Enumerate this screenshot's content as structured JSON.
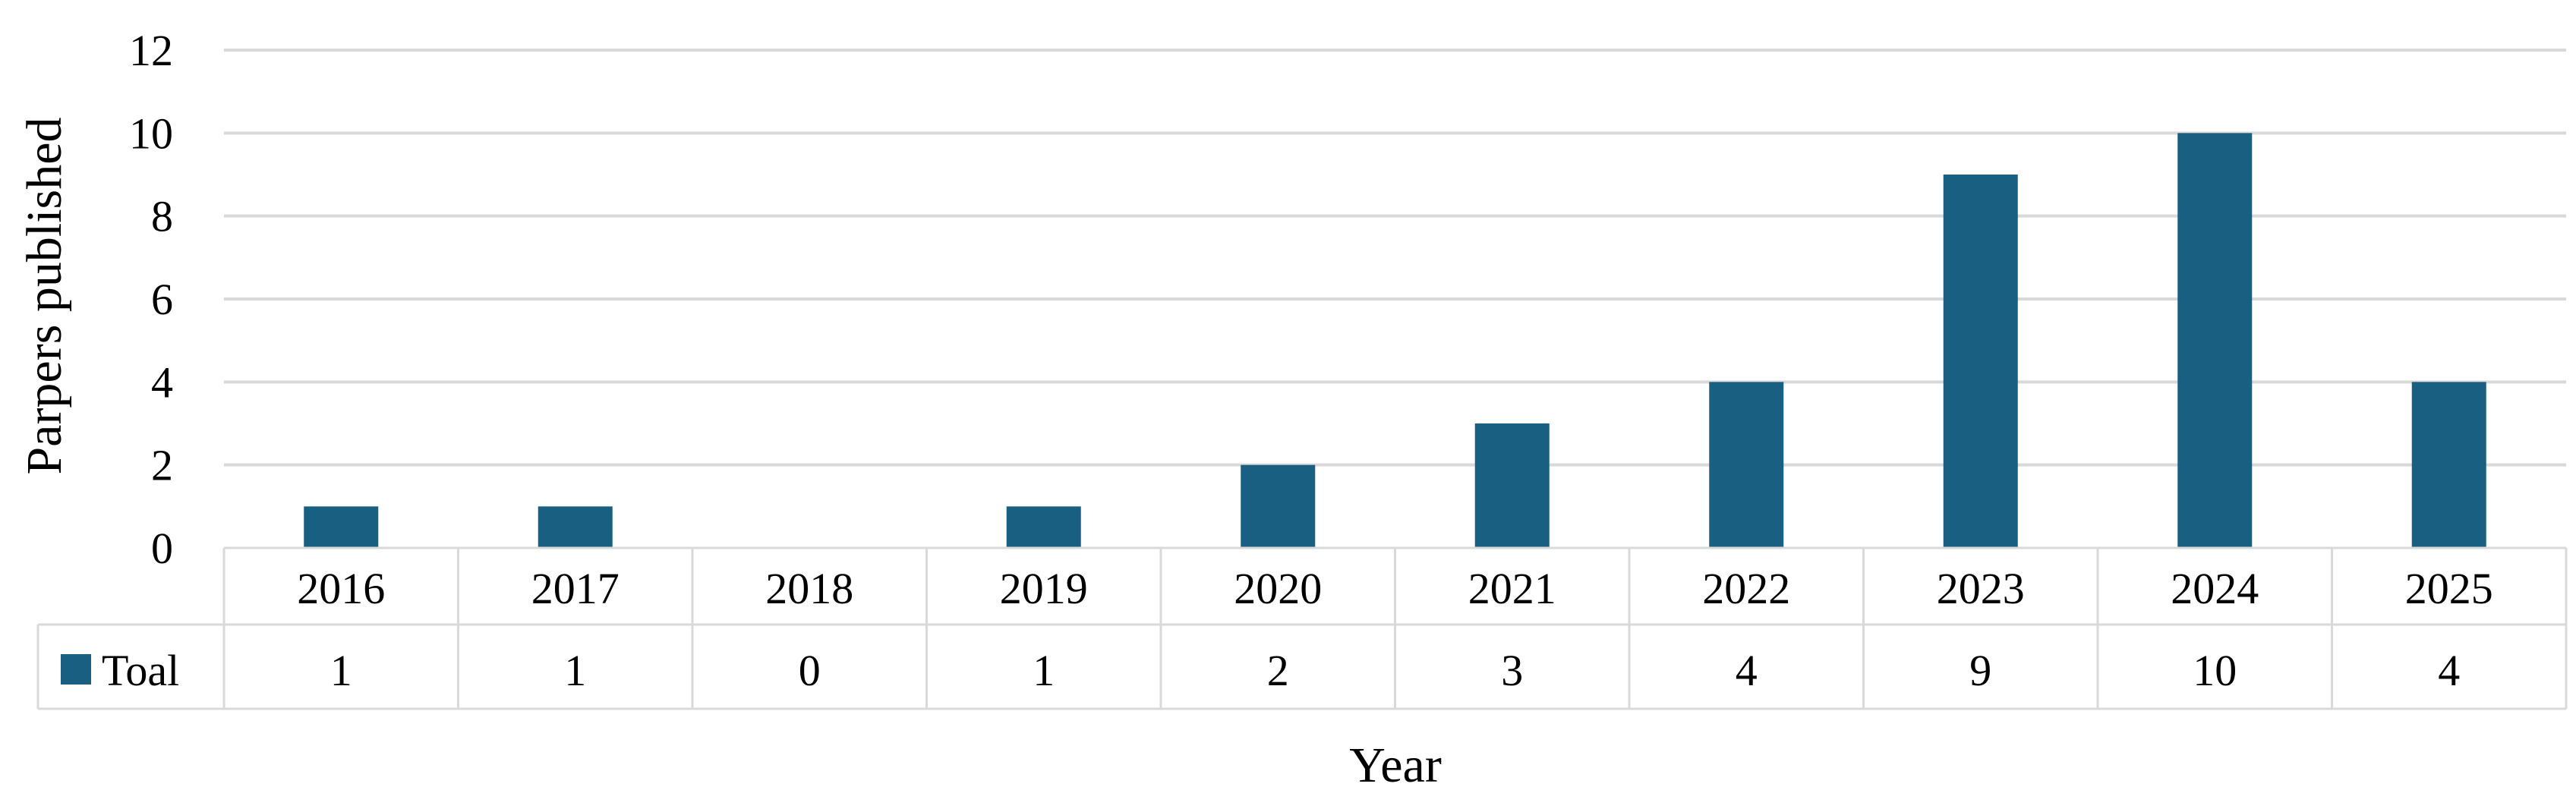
{
  "chart_data": {
    "type": "bar",
    "categories": [
      "2016",
      "2017",
      "2018",
      "2019",
      "2020",
      "2021",
      "2022",
      "2023",
      "2024",
      "2025"
    ],
    "series": [
      {
        "name": "Toal",
        "values": [
          1,
          1,
          0,
          1,
          2,
          3,
          4,
          9,
          10,
          4
        ],
        "color": "#185F82"
      }
    ],
    "xlabel": "Year",
    "ylabel": "Parpers published",
    "ylim": [
      0,
      12
    ],
    "yticks": [
      0,
      2,
      4,
      6,
      8,
      10,
      12
    ],
    "grid": true,
    "data_table": true,
    "legend": "in-data-table"
  },
  "colors": {
    "bar": "#185F82",
    "grid": "#D9D9D9",
    "table_border": "#D9D9D9"
  }
}
